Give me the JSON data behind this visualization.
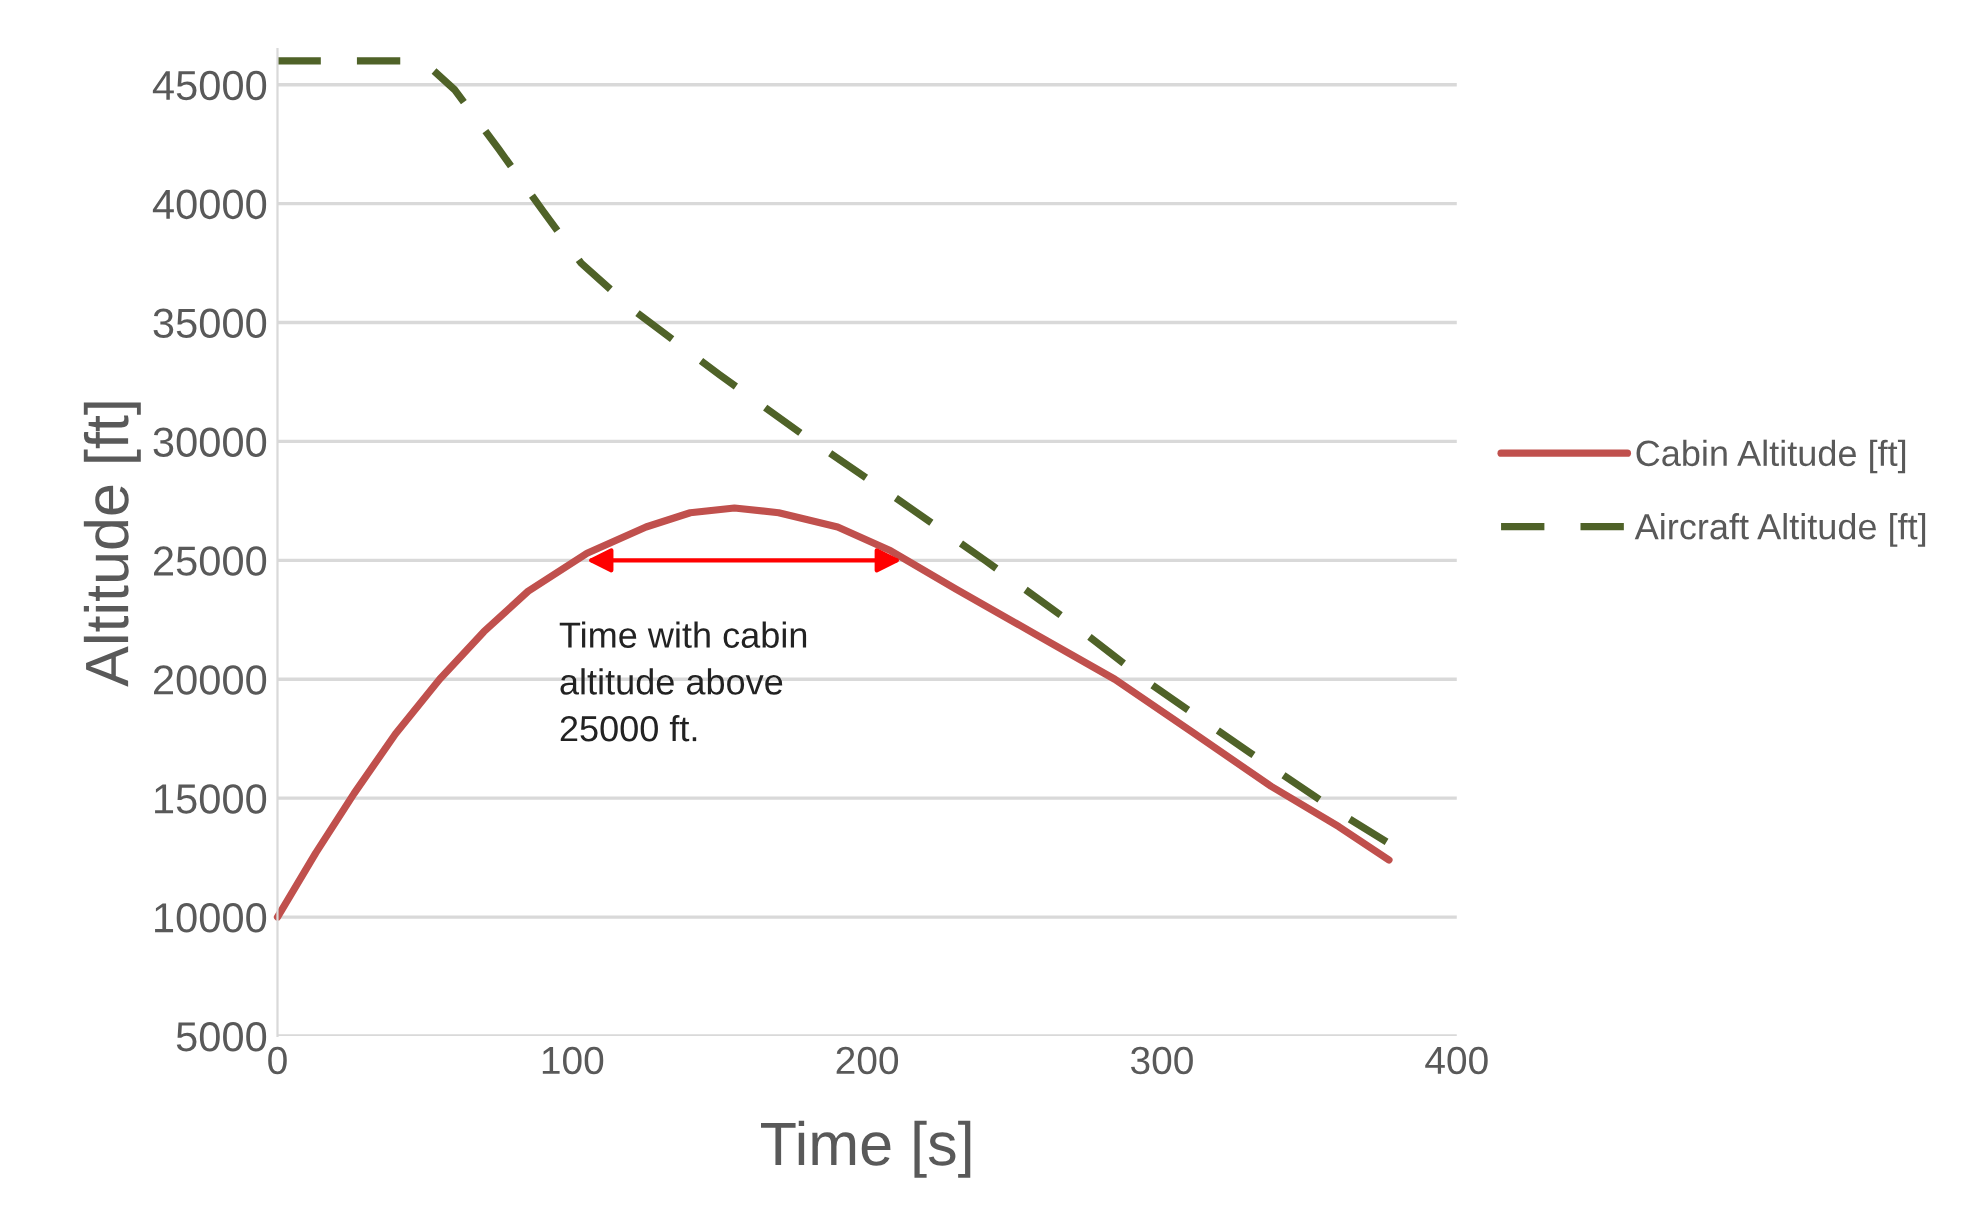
{
  "chart_data": {
    "type": "line",
    "xlabel": "Time [s]",
    "ylabel": "Altitude [ft]",
    "series": [
      {
        "name": "Cabin Altitude [ft]",
        "color": "#c0504d",
        "line_style": "solid",
        "x": [
          0,
          13,
          26,
          40,
          55,
          70,
          85,
          105,
          125,
          140,
          155,
          170,
          190,
          208,
          230,
          257,
          284,
          310,
          337,
          360,
          377
        ],
        "values": [
          10000,
          12700,
          15200,
          17700,
          20000,
          22000,
          23700,
          25300,
          26400,
          27000,
          27200,
          27000,
          26400,
          25400,
          23800,
          21900,
          20000,
          17800,
          15500,
          13800,
          12400
        ]
      },
      {
        "name": "Aircraft Altitude [ft]",
        "color": "#4f6228",
        "line_style": "dashed",
        "x": [
          0,
          45,
          52,
          60,
          75,
          90,
          103,
          121,
          150,
          178,
          210,
          240,
          270,
          295,
          330,
          360,
          377
        ],
        "values": [
          46000,
          46000,
          45700,
          44800,
          42300,
          39700,
          37500,
          35500,
          32800,
          30300,
          27600,
          25000,
          22300,
          19900,
          16900,
          14400,
          13100
        ]
      }
    ],
    "annotations": [
      {
        "text": "Time with cabin\naltitude above\n25000 ft.",
        "x": 103,
        "y": 25000
      }
    ],
    "xlim": [
      0,
      400
    ],
    "xticks": [
      0,
      100,
      200,
      300,
      400
    ],
    "ylim": [
      5000,
      46500
    ],
    "yticks": [
      5000,
      10000,
      15000,
      20000,
      25000,
      30000,
      35000,
      40000,
      45000
    ],
    "grid": "y",
    "legend": "right",
    "marker": "none"
  }
}
